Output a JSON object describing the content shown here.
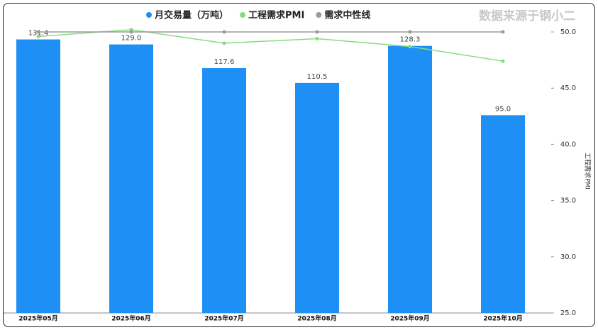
{
  "chart_data": {
    "type": "bar",
    "watermark": "数据来源于钢小二",
    "categories": [
      "2025年05月",
      "2025年06月",
      "2025年07月",
      "2025年08月",
      "2025年09月",
      "2025年10月"
    ],
    "ylim": [
      0,
      135
    ],
    "y2lim": [
      25,
      50
    ],
    "y2label": "工程需求PMI",
    "y2ticks": [
      {
        "value": 25,
        "label": "25.0"
      },
      {
        "value": 30,
        "label": "30.0"
      },
      {
        "value": 35,
        "label": "35.0"
      },
      {
        "value": 40,
        "label": "40.0"
      },
      {
        "value": 45,
        "label": "45.0"
      },
      {
        "value": 50,
        "label": "50.0"
      }
    ],
    "series": [
      {
        "name": "月交易量（万吨）",
        "type": "bar",
        "color": "#1e8ff5",
        "values": [
          131.4,
          129.0,
          117.6,
          110.5,
          128.3,
          95.0
        ],
        "value_labels": [
          "131.4",
          "129.0",
          "117.6",
          "110.5",
          "128.3",
          "95.0"
        ]
      },
      {
        "name": "工程需求PMI",
        "type": "line",
        "axis": "y2",
        "color": "#86dc80",
        "values": [
          49.6,
          50.2,
          49.0,
          49.4,
          48.7,
          47.4
        ]
      },
      {
        "name": "需求中性线",
        "type": "line",
        "axis": "y2",
        "color": "#9a9a9a",
        "values": [
          50,
          50,
          50,
          50,
          50,
          50
        ]
      }
    ]
  }
}
